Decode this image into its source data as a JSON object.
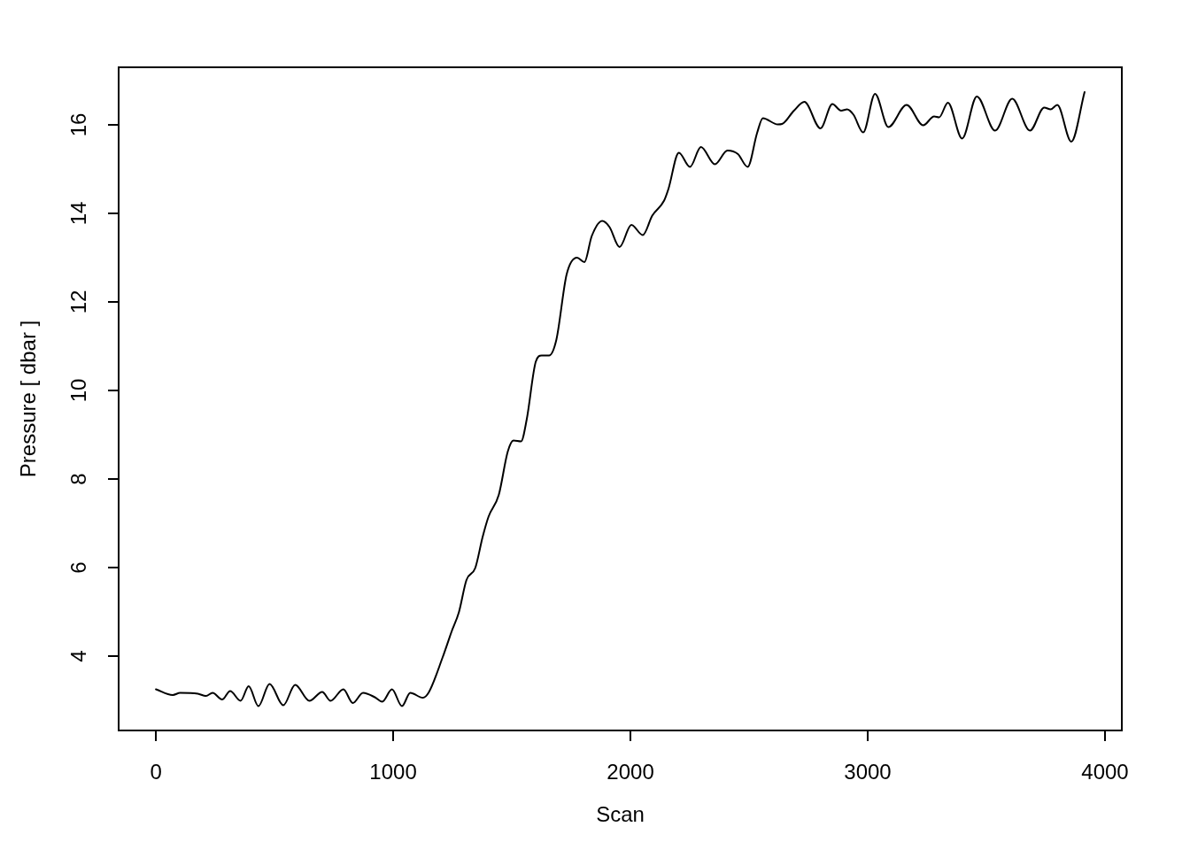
{
  "chart_data": {
    "type": "line",
    "xlabel": "Scan",
    "ylabel": "Pressure [ dbar ]",
    "x": [
      0,
      71,
      102,
      177,
      211,
      239,
      279,
      313,
      357,
      391,
      432,
      479,
      537,
      587,
      647,
      701,
      736,
      790,
      830,
      873,
      923,
      954,
      995,
      1037,
      1072,
      1125,
      1150,
      1209,
      1246,
      1277,
      1309,
      1346,
      1377,
      1402,
      1445,
      1483,
      1507,
      1539,
      1563,
      1601,
      1626,
      1657,
      1688,
      1731,
      1775,
      1806,
      1837,
      1881,
      1912,
      1954,
      2004,
      2052,
      2092,
      2142,
      2160,
      2204,
      2251,
      2297,
      2356,
      2409,
      2453,
      2494,
      2534,
      2558,
      2621,
      2639,
      2689,
      2733,
      2801,
      2851,
      2888,
      2913,
      2940,
      2981,
      3031,
      3087,
      3164,
      3234,
      3280,
      3301,
      3338,
      3398,
      3460,
      3537,
      3609,
      3684,
      3744,
      3771,
      3799,
      3858,
      3914
    ],
    "values": [
      3.25,
      3.12,
      3.17,
      3.15,
      3.1,
      3.17,
      3.02,
      3.21,
      2.99,
      3.32,
      2.87,
      3.37,
      2.89,
      3.35,
      2.99,
      3.19,
      2.99,
      3.25,
      2.94,
      3.17,
      3.07,
      2.97,
      3.25,
      2.87,
      3.17,
      3.06,
      3.18,
      3.98,
      4.55,
      4.99,
      5.72,
      5.99,
      6.69,
      7.15,
      7.64,
      8.62,
      8.87,
      8.85,
      9.35,
      10.65,
      10.79,
      10.79,
      11.15,
      12.62,
      13.0,
      12.9,
      13.49,
      13.83,
      13.69,
      13.24,
      13.74,
      13.51,
      13.95,
      14.29,
      14.55,
      15.37,
      15.05,
      15.5,
      15.11,
      15.42,
      15.34,
      15.05,
      15.82,
      16.15,
      16.01,
      16.02,
      16.32,
      16.52,
      15.92,
      16.47,
      16.32,
      16.35,
      16.23,
      15.83,
      16.7,
      15.95,
      16.45,
      15.99,
      16.19,
      16.17,
      16.5,
      15.69,
      16.64,
      15.87,
      16.59,
      15.87,
      16.39,
      16.35,
      16.45,
      15.62,
      16.74
    ],
    "color": "#000000",
    "line_style": "solid",
    "xlim": [
      -157,
      4071
    ],
    "ylim": [
      2.32,
      17.3
    ],
    "xticks": [
      0,
      1000,
      2000,
      3000,
      4000
    ],
    "yticks": [
      4,
      6,
      8,
      10,
      12,
      14,
      16
    ]
  }
}
